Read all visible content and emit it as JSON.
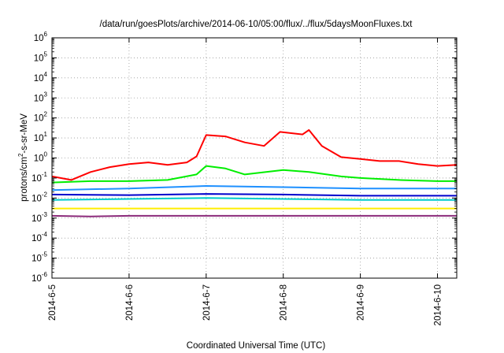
{
  "chart_data": {
    "type": "line",
    "title": "/data/run/goesPlots/archive/2014-06-10/05:00/flux/../flux/5daysMoonFluxes.txt",
    "xlabel": "Coordinated Universal Time (UTC)",
    "ylabel": {
      "pre": "protons/cm",
      "sup": "2",
      "post": "-s-sr-MeV"
    },
    "y_scale": "log",
    "ylim": [
      1e-06,
      1000000.0
    ],
    "y_ticks": [
      {
        "exp": "-6",
        "v": 1e-06
      },
      {
        "exp": "-5",
        "v": 1e-05
      },
      {
        "exp": "-4",
        "v": 0.0001
      },
      {
        "exp": "-3",
        "v": 0.001
      },
      {
        "exp": "-2",
        "v": 0.01
      },
      {
        "exp": "-1",
        "v": 0.1
      },
      {
        "exp": "0",
        "v": 1
      },
      {
        "exp": "1",
        "v": 10
      },
      {
        "exp": "2",
        "v": 100
      },
      {
        "exp": "3",
        "v": 1000
      },
      {
        "exp": "4",
        "v": 10000
      },
      {
        "exp": "5",
        "v": 100000
      },
      {
        "exp": "6",
        "v": 1000000
      }
    ],
    "y_tick_base": "10",
    "xlim": [
      "2014-06-05",
      "2014-06-10 06:00"
    ],
    "x_ticks": [
      {
        "date": "2014-06-05",
        "label": "2014-6-5"
      },
      {
        "date": "2014-06-06",
        "label": "2014-6-6"
      },
      {
        "date": "2014-06-07",
        "label": "2014-6-7"
      },
      {
        "date": "2014-06-08",
        "label": "2014-6-8"
      },
      {
        "date": "2014-06-09",
        "label": "2014-6-9"
      },
      {
        "date": "2014-06-10",
        "label": "2014-6-10"
      }
    ],
    "grid": true,
    "series": [
      {
        "color": "#ff0000",
        "points": [
          [
            "2014-06-05 00:00",
            0.12
          ],
          [
            "2014-06-05 06:00",
            0.08
          ],
          [
            "2014-06-05 12:00",
            0.2
          ],
          [
            "2014-06-05 18:00",
            0.35
          ],
          [
            "2014-06-06 00:00",
            0.5
          ],
          [
            "2014-06-06 06:00",
            0.6
          ],
          [
            "2014-06-06 12:00",
            0.45
          ],
          [
            "2014-06-06 18:00",
            0.6
          ],
          [
            "2014-06-06 21:00",
            1.2
          ],
          [
            "2014-06-07 00:00",
            14
          ],
          [
            "2014-06-07 06:00",
            12
          ],
          [
            "2014-06-07 12:00",
            6
          ],
          [
            "2014-06-07 18:00",
            4
          ],
          [
            "2014-06-07 23:00",
            20
          ],
          [
            "2014-06-08 06:00",
            15
          ],
          [
            "2014-06-08 08:00",
            25
          ],
          [
            "2014-06-08 12:00",
            4
          ],
          [
            "2014-06-08 18:00",
            1.1
          ],
          [
            "2014-06-09 00:00",
            0.9
          ],
          [
            "2014-06-09 06:00",
            0.7
          ],
          [
            "2014-06-09 12:00",
            0.7
          ],
          [
            "2014-06-09 18:00",
            0.5
          ],
          [
            "2014-06-10 00:00",
            0.4
          ],
          [
            "2014-06-10 06:00",
            0.45
          ]
        ]
      },
      {
        "color": "#00ee00",
        "points": [
          [
            "2014-06-05 00:00",
            0.06
          ],
          [
            "2014-06-05 12:00",
            0.07
          ],
          [
            "2014-06-06 00:00",
            0.07
          ],
          [
            "2014-06-06 12:00",
            0.08
          ],
          [
            "2014-06-06 21:00",
            0.15
          ],
          [
            "2014-06-07 00:00",
            0.4
          ],
          [
            "2014-06-07 06:00",
            0.3
          ],
          [
            "2014-06-07 12:00",
            0.15
          ],
          [
            "2014-06-08 00:00",
            0.25
          ],
          [
            "2014-06-08 08:00",
            0.2
          ],
          [
            "2014-06-08 18:00",
            0.12
          ],
          [
            "2014-06-09 00:00",
            0.1
          ],
          [
            "2014-06-09 12:00",
            0.08
          ],
          [
            "2014-06-10 00:00",
            0.07
          ],
          [
            "2014-06-10 06:00",
            0.07
          ]
        ]
      },
      {
        "color": "#1e90ff",
        "points": [
          [
            "2014-06-05 00:00",
            0.025
          ],
          [
            "2014-06-06 00:00",
            0.03
          ],
          [
            "2014-06-07 00:00",
            0.04
          ],
          [
            "2014-06-08 00:00",
            0.035
          ],
          [
            "2014-06-09 00:00",
            0.03
          ],
          [
            "2014-06-10 06:00",
            0.03
          ]
        ]
      },
      {
        "color": "#00cccc",
        "points": [
          [
            "2014-06-05 00:00",
            0.008
          ],
          [
            "2014-06-06 00:00",
            0.009
          ],
          [
            "2014-06-07 00:00",
            0.01
          ],
          [
            "2014-06-08 00:00",
            0.009
          ],
          [
            "2014-06-09 00:00",
            0.008
          ],
          [
            "2014-06-10 06:00",
            0.008
          ]
        ]
      },
      {
        "color": "#0000cd",
        "points": [
          [
            "2014-06-05 00:00",
            0.015
          ],
          [
            "2014-06-06 00:00",
            0.014
          ],
          [
            "2014-06-07 00:00",
            0.016
          ],
          [
            "2014-06-08 00:00",
            0.015
          ],
          [
            "2014-06-09 00:00",
            0.013
          ],
          [
            "2014-06-10 06:00",
            0.013
          ]
        ]
      },
      {
        "color": "#ffee00",
        "points": [
          [
            "2014-06-05 00:00",
            0.003
          ],
          [
            "2014-06-06 00:00",
            0.003
          ],
          [
            "2014-06-07 00:00",
            0.003
          ],
          [
            "2014-06-08 00:00",
            0.003
          ],
          [
            "2014-06-09 00:00",
            0.003
          ],
          [
            "2014-06-10 06:00",
            0.003
          ]
        ]
      },
      {
        "color": "#8b2a7a",
        "points": [
          [
            "2014-06-05 00:00",
            0.0013
          ],
          [
            "2014-06-05 12:00",
            0.0012
          ],
          [
            "2014-06-06 00:00",
            0.0013
          ],
          [
            "2014-06-07 00:00",
            0.0013
          ],
          [
            "2014-06-08 00:00",
            0.0013
          ],
          [
            "2014-06-08 21:00",
            0.0013
          ],
          [
            "2014-06-09 00:00",
            0.0013
          ],
          [
            "2014-06-10 06:00",
            0.0013
          ]
        ]
      }
    ]
  }
}
